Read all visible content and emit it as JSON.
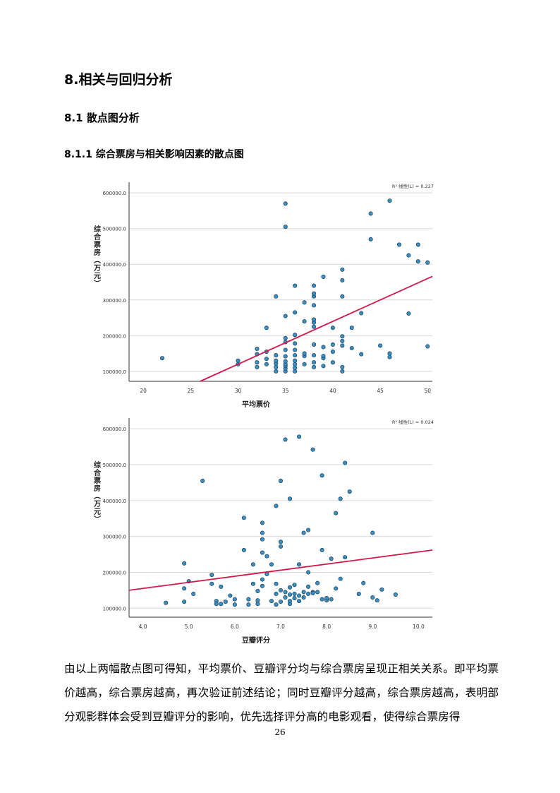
{
  "headings": {
    "h1": "8.相关与回归分析",
    "h2": "8.1 散点图分析",
    "h3": "8.1.1 综合票房与相关影响因素的散点图"
  },
  "paragraph": "由以上两幅散点图可得知，平均票价、豆瓣评分均与综合票房呈现正相关关系。即平均票价越高，综合票房越高，再次验证前述结论；同时豆瓣评分越高，综合票房越高，表明部分观影群体会受到豆瓣评分的影响，优先选择评分高的电影观看，使得综合票房得",
  "page_number": "26",
  "colors": {
    "point_fill": "#3a8fc3",
    "point_stroke": "#1c3d57",
    "fit_line": "#d0174a",
    "grid": "#d9d9d9"
  },
  "chart_data": [
    {
      "type": "scatter",
      "xlabel": "平均票价",
      "ylabel": "综合票房（万元）",
      "r2_label": "R² 线性(L) = 0.227",
      "xlim": [
        18.5,
        50.5
      ],
      "ylim": [
        72000,
        630000
      ],
      "xticks": [
        20,
        25,
        30,
        35,
        40,
        45,
        50
      ],
      "xtick_labels": [
        "20",
        "25",
        "30",
        "35",
        "40",
        "45",
        "50"
      ],
      "yticks": [
        100000,
        200000,
        300000,
        400000,
        500000,
        600000
      ],
      "ytick_labels": [
        "100000.0",
        "200000.0",
        "300000.0",
        "400000.0",
        "500000.0",
        "600000.0"
      ],
      "fit": {
        "x": [
          26,
          50.5
        ],
        "y": [
          72000,
          366000
        ]
      },
      "points": [
        [
          22,
          137000
        ],
        [
          30,
          120000
        ],
        [
          30,
          130000
        ],
        [
          32,
          112000
        ],
        [
          32,
          125000
        ],
        [
          32,
          148000
        ],
        [
          32,
          163000
        ],
        [
          33,
          120000
        ],
        [
          33,
          135000
        ],
        [
          33,
          155000
        ],
        [
          33,
          222000
        ],
        [
          34,
          100000
        ],
        [
          34,
          112000
        ],
        [
          34,
          122000
        ],
        [
          34,
          130000
        ],
        [
          34,
          145000
        ],
        [
          34,
          310000
        ],
        [
          35,
          100000
        ],
        [
          35,
          108000
        ],
        [
          35,
          115000
        ],
        [
          35,
          120000
        ],
        [
          35,
          128000
        ],
        [
          35,
          142000
        ],
        [
          35,
          160000
        ],
        [
          35,
          182000
        ],
        [
          35,
          193000
        ],
        [
          35,
          255000
        ],
        [
          35,
          505000
        ],
        [
          35,
          570000
        ],
        [
          36,
          100000
        ],
        [
          36,
          110000
        ],
        [
          36,
          120000
        ],
        [
          36,
          130000
        ],
        [
          36,
          145000
        ],
        [
          36,
          160000
        ],
        [
          36,
          178000
        ],
        [
          36,
          202000
        ],
        [
          36,
          265000
        ],
        [
          36,
          340000
        ],
        [
          37,
          120000
        ],
        [
          37,
          143000
        ],
        [
          37,
          150000
        ],
        [
          37,
          240000
        ],
        [
          37,
          293000
        ],
        [
          38,
          112000
        ],
        [
          38,
          125000
        ],
        [
          38,
          145000
        ],
        [
          38,
          175000
        ],
        [
          38,
          225000
        ],
        [
          38,
          237000
        ],
        [
          38,
          245000
        ],
        [
          38,
          285000
        ],
        [
          38,
          310000
        ],
        [
          38,
          318000
        ],
        [
          38,
          340000
        ],
        [
          39,
          115000
        ],
        [
          39,
          137000
        ],
        [
          39,
          143000
        ],
        [
          39,
          168000
        ],
        [
          39,
          365000
        ],
        [
          40,
          125000
        ],
        [
          40,
          155000
        ],
        [
          40,
          175000
        ],
        [
          40,
          222000
        ],
        [
          41,
          100000
        ],
        [
          41,
          112000
        ],
        [
          41,
          172000
        ],
        [
          41,
          185000
        ],
        [
          41,
          198000
        ],
        [
          41,
          310000
        ],
        [
          41,
          355000
        ],
        [
          41,
          385000
        ],
        [
          42,
          165000
        ],
        [
          42,
          222000
        ],
        [
          43,
          148000
        ],
        [
          43,
          263000
        ],
        [
          44,
          470000
        ],
        [
          44,
          542000
        ],
        [
          45,
          172000
        ],
        [
          46,
          140000
        ],
        [
          46,
          150000
        ],
        [
          46,
          578000
        ],
        [
          47,
          455000
        ],
        [
          48,
          262000
        ],
        [
          48,
          425000
        ],
        [
          49,
          408000
        ],
        [
          49,
          455000
        ],
        [
          50,
          170000
        ],
        [
          50,
          405000
        ]
      ]
    },
    {
      "type": "scatter",
      "xlabel": "豆瓣评分",
      "ylabel": "综合票房（万元）",
      "r2_label": "R² 线性(L) = 0.024",
      "xlim": [
        3.7,
        10.3
      ],
      "ylim": [
        75000,
        630000
      ],
      "xticks": [
        4.0,
        5.0,
        6.0,
        7.0,
        8.0,
        9.0,
        10.0
      ],
      "xtick_labels": [
        "4.0",
        "5.0",
        "6.0",
        "7.0",
        "8.0",
        "9.0",
        "10.0"
      ],
      "yticks": [
        100000,
        200000,
        300000,
        400000,
        500000,
        600000
      ],
      "ytick_labels": [
        "100000.0",
        "200000.0",
        "300000.0",
        "400000.0",
        "500000.0",
        "600000.0"
      ],
      "fit": {
        "x": [
          3.7,
          10.3
        ],
        "y": [
          150000,
          262000
        ]
      },
      "points": [
        [
          4.5,
          115000
        ],
        [
          4.9,
          118000
        ],
        [
          4.9,
          155000
        ],
        [
          4.9,
          225000
        ],
        [
          5.0,
          175000
        ],
        [
          5.1,
          140000
        ],
        [
          5.3,
          455000
        ],
        [
          5.5,
          168000
        ],
        [
          5.5,
          193000
        ],
        [
          5.6,
          120000
        ],
        [
          5.6,
          112000
        ],
        [
          5.7,
          112000
        ],
        [
          5.7,
          160000
        ],
        [
          5.8,
          118000
        ],
        [
          5.9,
          135000
        ],
        [
          6.0,
          110000
        ],
        [
          6.0,
          125000
        ],
        [
          6.2,
          262000
        ],
        [
          6.2,
          352000
        ],
        [
          6.3,
          110000
        ],
        [
          6.3,
          125000
        ],
        [
          6.4,
          168000
        ],
        [
          6.4,
          222000
        ],
        [
          6.5,
          112000
        ],
        [
          6.5,
          122000
        ],
        [
          6.5,
          148000
        ],
        [
          6.6,
          162000
        ],
        [
          6.6,
          180000
        ],
        [
          6.6,
          255000
        ],
        [
          6.6,
          292000
        ],
        [
          6.6,
          310000
        ],
        [
          6.6,
          338000
        ],
        [
          6.7,
          195000
        ],
        [
          6.7,
          245000
        ],
        [
          6.8,
          120000
        ],
        [
          6.8,
          222000
        ],
        [
          6.9,
          110000
        ],
        [
          6.9,
          140000
        ],
        [
          6.9,
          168000
        ],
        [
          6.9,
          385000
        ],
        [
          7.0,
          118000
        ],
        [
          7.0,
          150000
        ],
        [
          7.0,
          272000
        ],
        [
          7.0,
          285000
        ],
        [
          7.0,
          455000
        ],
        [
          7.1,
          130000
        ],
        [
          7.1,
          145000
        ],
        [
          7.1,
          570000
        ],
        [
          7.2,
          112000
        ],
        [
          7.2,
          120000
        ],
        [
          7.2,
          138000
        ],
        [
          7.2,
          158000
        ],
        [
          7.2,
          405000
        ],
        [
          7.3,
          128000
        ],
        [
          7.3,
          140000
        ],
        [
          7.3,
          165000
        ],
        [
          7.4,
          120000
        ],
        [
          7.4,
          135000
        ],
        [
          7.4,
          222000
        ],
        [
          7.4,
          578000
        ],
        [
          7.5,
          130000
        ],
        [
          7.5,
          145000
        ],
        [
          7.5,
          310000
        ],
        [
          7.6,
          140000
        ],
        [
          7.6,
          160000
        ],
        [
          7.6,
          318000
        ],
        [
          7.6,
          200000
        ],
        [
          7.7,
          145000
        ],
        [
          7.7,
          142000
        ],
        [
          7.7,
          542000
        ],
        [
          7.8,
          145000
        ],
        [
          7.8,
          170000
        ],
        [
          7.9,
          125000
        ],
        [
          7.9,
          262000
        ],
        [
          7.9,
          470000
        ],
        [
          8.0,
          122000
        ],
        [
          8.0,
          128000
        ],
        [
          8.1,
          125000
        ],
        [
          8.1,
          238000
        ],
        [
          8.2,
          155000
        ],
        [
          8.2,
          365000
        ],
        [
          8.3,
          182000
        ],
        [
          8.3,
          405000
        ],
        [
          8.4,
          242000
        ],
        [
          8.4,
          505000
        ],
        [
          8.5,
          425000
        ],
        [
          8.7,
          140000
        ],
        [
          8.8,
          170000
        ],
        [
          9.0,
          130000
        ],
        [
          9.0,
          310000
        ],
        [
          9.1,
          122000
        ],
        [
          9.2,
          152000
        ],
        [
          9.5,
          138000
        ]
      ]
    }
  ]
}
